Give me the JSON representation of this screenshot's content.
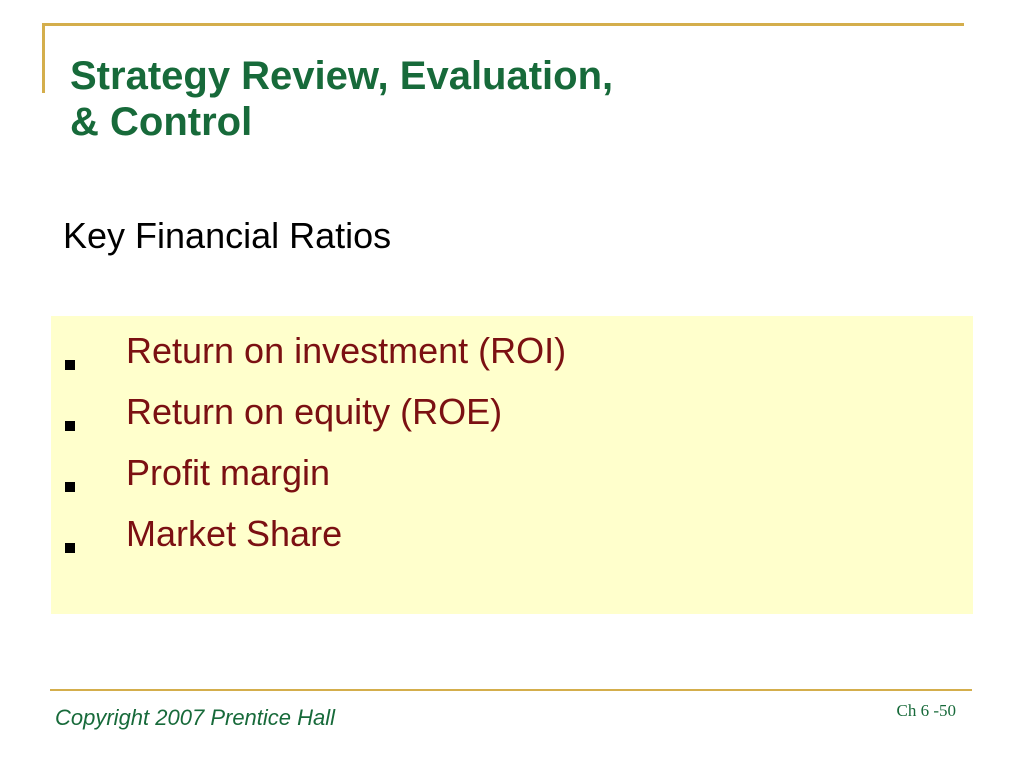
{
  "slide": {
    "title_lines": [
      "Strategy Review, Evaluation,",
      "& Control"
    ],
    "subtitle": "Key Financial Ratios",
    "bullets": [
      "Return on investment (ROI)",
      "Return on equity (ROE)",
      "Profit margin",
      "Market Share"
    ],
    "footer": {
      "copyright": "Copyright 2007 Prentice Hall",
      "page_number": "Ch 6 -50"
    }
  },
  "colors": {
    "title": "#176a3a",
    "bullet_text": "#7b1012",
    "content_background": "#ffffcc",
    "accent_lines": "#d4ae4c",
    "footer_text": "#176a3a"
  }
}
